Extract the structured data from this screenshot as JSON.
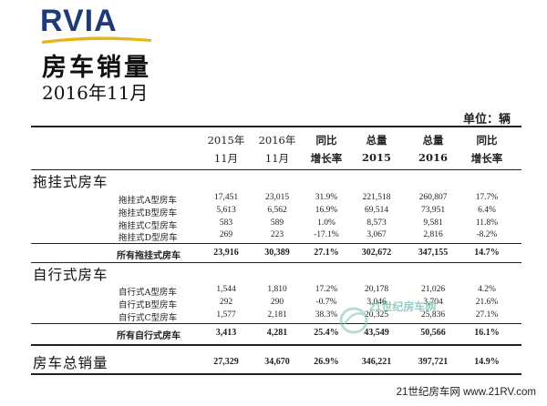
{
  "header": {
    "logo_text": "RVIA",
    "title": "房车销量",
    "subtitle": "2016年11月",
    "unit": "单位：辆"
  },
  "columns": [
    {
      "line1": "2015年",
      "line2": "11月",
      "bold": false
    },
    {
      "line1": "2016年",
      "line2": "11月",
      "bold": false
    },
    {
      "line1": "同比",
      "line2": "增长率",
      "bold": true
    },
    {
      "line1": "总量",
      "line2": "2015",
      "bold": true
    },
    {
      "line1": "总量",
      "line2": "2016",
      "bold": true
    },
    {
      "line1": "同比",
      "line2": "增长率",
      "bold": true
    }
  ],
  "towable": {
    "section_label": "拖挂式房车",
    "rows": [
      {
        "label": "拖挂式A型房车",
        "v": [
          "17,451",
          "23,015",
          "31.9%",
          "221,518",
          "260,807",
          "17.7%"
        ]
      },
      {
        "label": "拖挂式B型房车",
        "v": [
          "5,613",
          "6,562",
          "16.9%",
          "69,514",
          "73,951",
          "6.4%"
        ]
      },
      {
        "label": "拖挂式C型房车",
        "v": [
          "583",
          "589",
          "1.0%",
          "8,573",
          "9,581",
          "11.8%"
        ]
      },
      {
        "label": "拖挂式D型房车",
        "v": [
          "269",
          "223",
          "-17.1%",
          "3,067",
          "2,816",
          "-8.2%"
        ]
      }
    ],
    "total": {
      "label": "所有拖挂式房车",
      "v": [
        "23,916",
        "30,389",
        "27.1%",
        "302,672",
        "347,155",
        "14.7%"
      ]
    }
  },
  "motorized": {
    "section_label": "自行式房车",
    "rows": [
      {
        "label": "自行式A型房车",
        "v": [
          "1,544",
          "1,810",
          "17.2%",
          "20,178",
          "21,026",
          "4.2%"
        ]
      },
      {
        "label": "自行式B型房车",
        "v": [
          "292",
          "290",
          "-0.7%",
          "3,046",
          "3,704",
          "21.6%"
        ]
      },
      {
        "label": "自行式C型房车",
        "v": [
          "1,577",
          "2,181",
          "38.3%",
          "20,325",
          "25,836",
          "27.1%"
        ]
      }
    ],
    "total": {
      "label": "所有自行式房车",
      "v": [
        "3,413",
        "4,281",
        "25.4%",
        "43,549",
        "50,566",
        "16.1%"
      ]
    }
  },
  "grand_total": {
    "label": "房车总销量",
    "v": [
      "27,329",
      "34,670",
      "26.9%",
      "346,221",
      "397,721",
      "14.9%"
    ]
  },
  "watermark": {
    "text": "21世纪房车网"
  },
  "footer": {
    "text": "21世纪房车网 www.21RV.com"
  },
  "colors": {
    "logo_blue": "#1e3a78",
    "logo_gold": "#e8b317",
    "watermark_green": "#7fbfb6"
  }
}
